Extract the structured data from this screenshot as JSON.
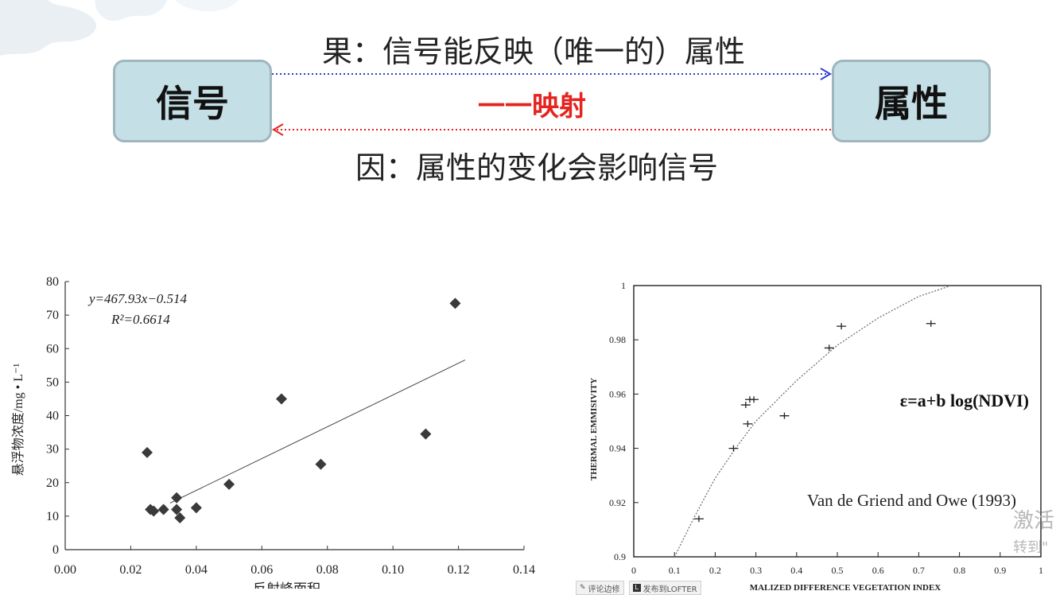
{
  "diagram": {
    "left_node": "信号",
    "right_node": "属性",
    "top_label": "果：信号能反映（唯一的）属性",
    "middle_label": "一一映射",
    "bottom_label": "因：属性的变化会影响信号",
    "forward_arrow_color": "#2b3fd6",
    "backward_arrow_color": "#e5241f"
  },
  "chart_data": [
    {
      "type": "scatter",
      "xlabel": "反射峰面积",
      "ylabel": "悬浮物浓度/mg • L⁻¹",
      "xlim": [
        0,
        0.14
      ],
      "ylim": [
        0,
        80
      ],
      "xticks": [
        "0.00",
        "0.02",
        "0.04",
        "0.06",
        "0.08",
        "0.10",
        "0.12",
        "0.14"
      ],
      "yticks": [
        "0",
        "10",
        "20",
        "30",
        "40",
        "50",
        "60",
        "70",
        "80"
      ],
      "equation": "y=467.93x−0.514",
      "r2": "R²=0.6614",
      "points": [
        [
          0.025,
          29
        ],
        [
          0.026,
          12
        ],
        [
          0.027,
          11.5
        ],
        [
          0.03,
          12
        ],
        [
          0.034,
          15.5
        ],
        [
          0.034,
          12
        ],
        [
          0.035,
          9.5
        ],
        [
          0.04,
          12.5
        ],
        [
          0.05,
          19.5
        ],
        [
          0.066,
          45
        ],
        [
          0.078,
          25.5
        ],
        [
          0.11,
          34.5
        ],
        [
          0.119,
          73.5
        ]
      ],
      "fit_line": [
        [
          0.032,
          13.9
        ],
        [
          0.122,
          56.6
        ]
      ]
    },
    {
      "type": "scatter",
      "xlabel": "MALIZED DIFFERENCE VEGETATION INDEX",
      "ylabel": "THERMAL EMMISIVITY",
      "xlim": [
        0,
        1
      ],
      "ylim": [
        0.9,
        1
      ],
      "xticks": [
        "0",
        "0.1",
        "0.2",
        "0.3",
        "0.4",
        "0.5",
        "0.6",
        "0.7",
        "0.8",
        "0.9",
        "1"
      ],
      "yticks": [
        "0.9",
        "0.92",
        "0.94",
        "0.96",
        "0.98",
        "1"
      ],
      "equation": "ε=a+b log(NDVI)",
      "citation": "Van de Griend and Owe (1993)",
      "points": [
        [
          0.16,
          0.914
        ],
        [
          0.245,
          0.94
        ],
        [
          0.28,
          0.949
        ],
        [
          0.275,
          0.956
        ],
        [
          0.285,
          0.958
        ],
        [
          0.295,
          0.958
        ],
        [
          0.37,
          0.952
        ],
        [
          0.48,
          0.977
        ],
        [
          0.51,
          0.985
        ],
        [
          0.73,
          0.986
        ]
      ],
      "fit_curve": [
        [
          0.1,
          0.9
        ],
        [
          0.15,
          0.915
        ],
        [
          0.2,
          0.929
        ],
        [
          0.25,
          0.94
        ],
        [
          0.3,
          0.95
        ],
        [
          0.4,
          0.965
        ],
        [
          0.5,
          0.978
        ],
        [
          0.6,
          0.988
        ],
        [
          0.7,
          0.996
        ],
        [
          0.78,
          1.0
        ]
      ]
    }
  ],
  "watermark": {
    "line1": "激活",
    "line2": "转到\""
  },
  "toolbar": {
    "comment_label": "评论边修",
    "post_icon": "L",
    "post_label": "发布到LOFTER"
  }
}
